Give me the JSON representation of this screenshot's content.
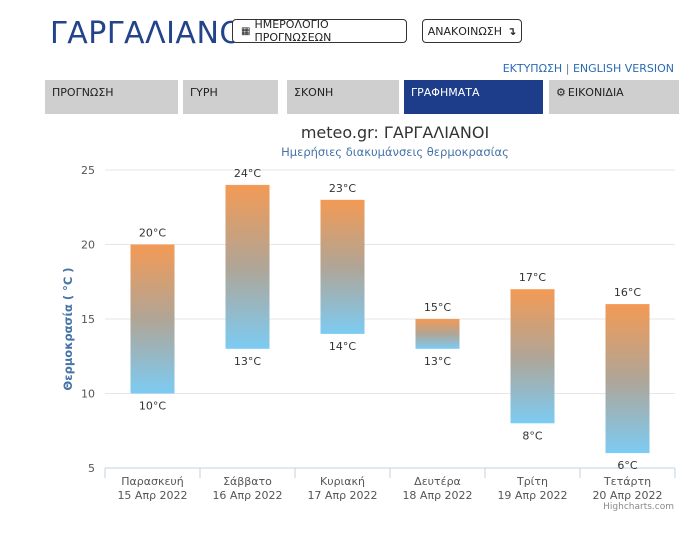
{
  "header": {
    "title": "ΓΑΡΓΑΛΙΑΝΟΙ",
    "calendar_button": "ΗΜΕΡΟΛΟΓΙΟ ΠΡΟΓΝΩΣΕΩΝ",
    "announce_button": "ΑΝΑΚΟΙΝΩΣΗ",
    "calendar_icon": "calendar-icon",
    "announce_icon": "arrow-return-icon"
  },
  "links": {
    "print": "ΕΚΤΥΠΩΣΗ",
    "separator": "|",
    "english": "ENGLISH VERSION"
  },
  "tabs": [
    {
      "label": "ΠΡΟΓΝΩΣΗ",
      "active": false
    },
    {
      "label": "ΓΥΡΗ",
      "active": false
    },
    {
      "label": "ΣΚΟΝΗ",
      "active": false
    },
    {
      "label": "ΓΡΑΦΗΜΑΤΑ",
      "active": true
    },
    {
      "label": "ΕΙΚΟΝΙΔΙΑ",
      "active": false,
      "icon": "gear-icon"
    }
  ],
  "colors": {
    "title": "#23438a",
    "active_tab": "#1d3d8a",
    "tab": "#cfcfcf",
    "bar_top": "#f39a55",
    "bar_bottom": "#7ccbf3",
    "axis_title": "#4572a7",
    "subtitle": "#4572a7"
  },
  "chart_data": {
    "type": "bar",
    "title": "meteo.gr: ΓΑΡΓΑΛΙΑΝΟΙ",
    "subtitle": "Ημερήσιες διακυμάνσεις θερμοκρασίας",
    "ylabel": "Θερμοκρασία ( °C )",
    "ylim": [
      5,
      25
    ],
    "yticks": [
      5,
      10,
      15,
      20,
      25
    ],
    "grid": true,
    "unit": "°C",
    "categories": [
      {
        "day": "Παρασκευή",
        "date": "15 Απρ 2022"
      },
      {
        "day": "Σάββατο",
        "date": "16 Απρ 2022"
      },
      {
        "day": "Κυριακή",
        "date": "17 Απρ 2022"
      },
      {
        "day": "Δευτέρα",
        "date": "18 Απρ 2022"
      },
      {
        "day": "Τρίτη",
        "date": "19 Απρ 2022"
      },
      {
        "day": "Τετάρτη",
        "date": "20 Απρ 2022"
      }
    ],
    "min": [
      10,
      13,
      14,
      13,
      8,
      6
    ],
    "max": [
      20,
      24,
      23,
      15,
      17,
      16
    ],
    "min_labels": [
      "10°C",
      "13°C",
      "14°C",
      "13°C",
      "8°C",
      "6°C"
    ],
    "max_labels": [
      "20°C",
      "24°C",
      "23°C",
      "15°C",
      "17°C",
      "16°C"
    ]
  },
  "credits": "Highcharts.com"
}
